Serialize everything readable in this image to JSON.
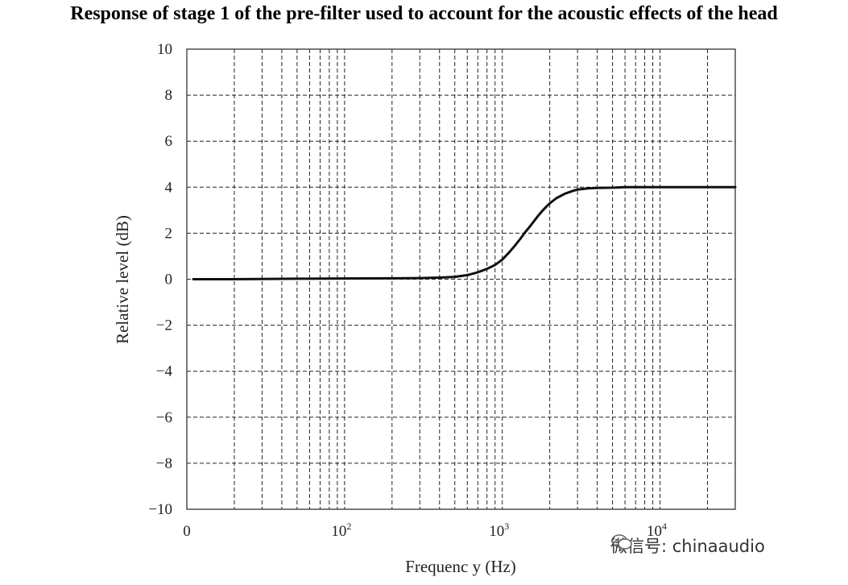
{
  "title": "Response of stage 1 of the pre-filter used to account for the acoustic effects of the head",
  "watermark": "微信号: chinaaudio",
  "chart_data": {
    "type": "line",
    "title": "Response of stage 1 of the pre-filter used to account for the acoustic effects of the head",
    "xlabel": "Frequenc y (Hz)",
    "ylabel": "Relative level (dB)",
    "xscale": "log",
    "xlim": [
      10,
      30000
    ],
    "ylim": [
      -10,
      10
    ],
    "x_tick_labels": [
      {
        "value": 10,
        "label": "0"
      },
      {
        "value": 100,
        "label": "10",
        "sup": "2"
      },
      {
        "value": 1000,
        "label": "10",
        "sup": "3"
      },
      {
        "value": 10000,
        "label": "10",
        "sup": "4"
      }
    ],
    "y_ticks": [
      10,
      8,
      6,
      4,
      2,
      0,
      -2,
      -4,
      -6,
      -8,
      -10
    ],
    "y_tick_labels": [
      "10",
      "8",
      "6",
      "4",
      "2",
      "0",
      "−2",
      "−4",
      "−6",
      "−8",
      "−10"
    ],
    "grid": true,
    "legend": "none",
    "series": [
      {
        "x": [
          11,
          20,
          50,
          100,
          200,
          300,
          400,
          500,
          600,
          700,
          800,
          900,
          1000,
          1100,
          1200,
          1300,
          1400,
          1500,
          1600,
          1700,
          1800,
          1900,
          2000,
          2200,
          2500,
          2800,
          3000,
          3500,
          4000,
          5000,
          6000,
          8000,
          10000,
          15000,
          20000,
          30000
        ],
        "y": [
          0,
          0,
          0.02,
          0.03,
          0.04,
          0.05,
          0.07,
          0.1,
          0.18,
          0.3,
          0.45,
          0.62,
          0.85,
          1.15,
          1.45,
          1.75,
          2.05,
          2.3,
          2.55,
          2.78,
          2.98,
          3.15,
          3.3,
          3.52,
          3.72,
          3.84,
          3.9,
          3.95,
          3.97,
          3.98,
          4.0,
          4.0,
          4.0,
          4.0,
          4.0,
          4.0
        ]
      }
    ]
  }
}
